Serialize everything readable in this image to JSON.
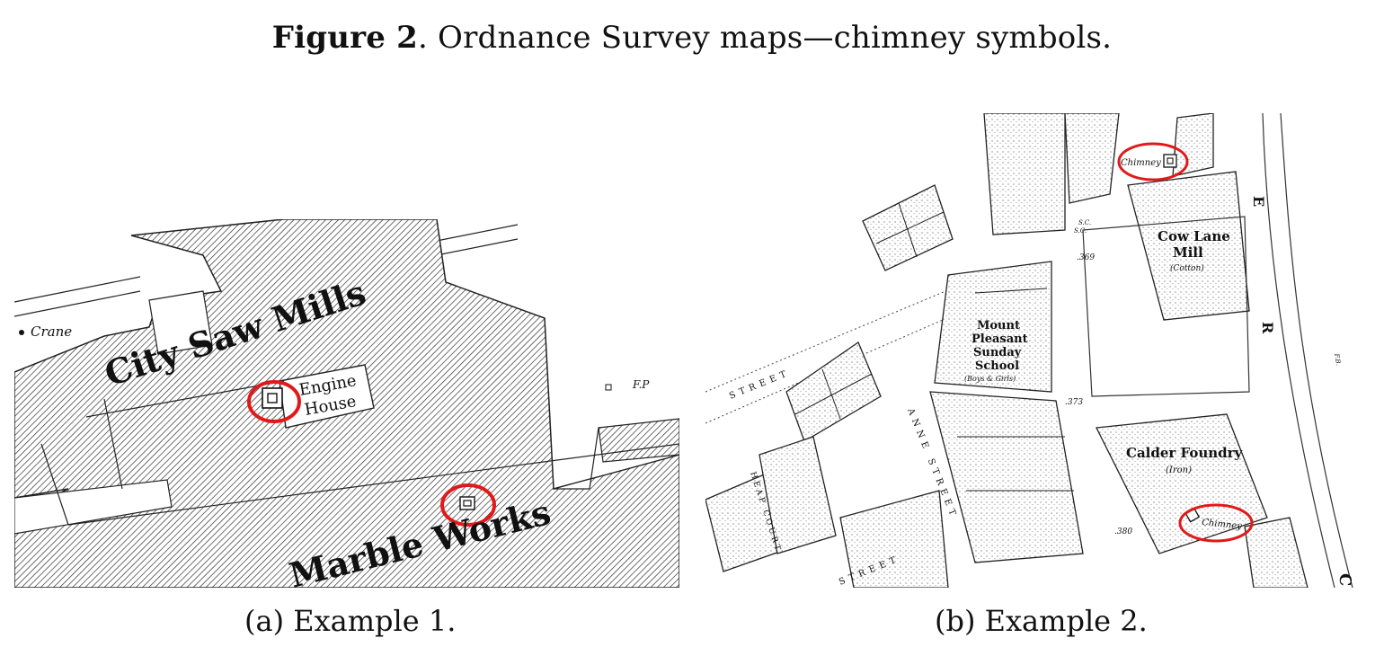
{
  "figure": {
    "label": "Figure 2",
    "title": ". Ordnance Survey maps—chimney symbols."
  },
  "panel_a": {
    "caption": "(a) Example 1.",
    "labels": {
      "crane": "Crane",
      "saw_mills": "City Saw Mills",
      "engine": "Engine",
      "house": "House",
      "fp": "F.P",
      "marble_works": "Marble Works"
    },
    "highlight_color": "#e01a1a"
  },
  "panel_b": {
    "caption": "(b) Example 2.",
    "labels": {
      "chimney": "Chimney",
      "sc1": "S.C.",
      "sc2": "S.C.",
      "h369": ".369",
      "cowlane1": "Cow Lane",
      "cowlane2": "Mill",
      "cotton": "(Cotton)",
      "mount1": "Mount",
      "mount2": "Pleasant",
      "mount3": "Sunday",
      "mount4": "School",
      "boys": "(Boys & Girls)",
      "h373": ".373",
      "calder": "Calder Foundry",
      "iron": "(Iron)",
      "h380": ".380",
      "street1": "STREET",
      "street2": "STREET",
      "anne_street": "ANNE STREET",
      "heap_court": "HEAP COURT",
      "e_letter": "E",
      "r_letter": "R",
      "c_letter": "C",
      "fb": "F.B."
    },
    "highlight_color": "#e01a1a"
  }
}
